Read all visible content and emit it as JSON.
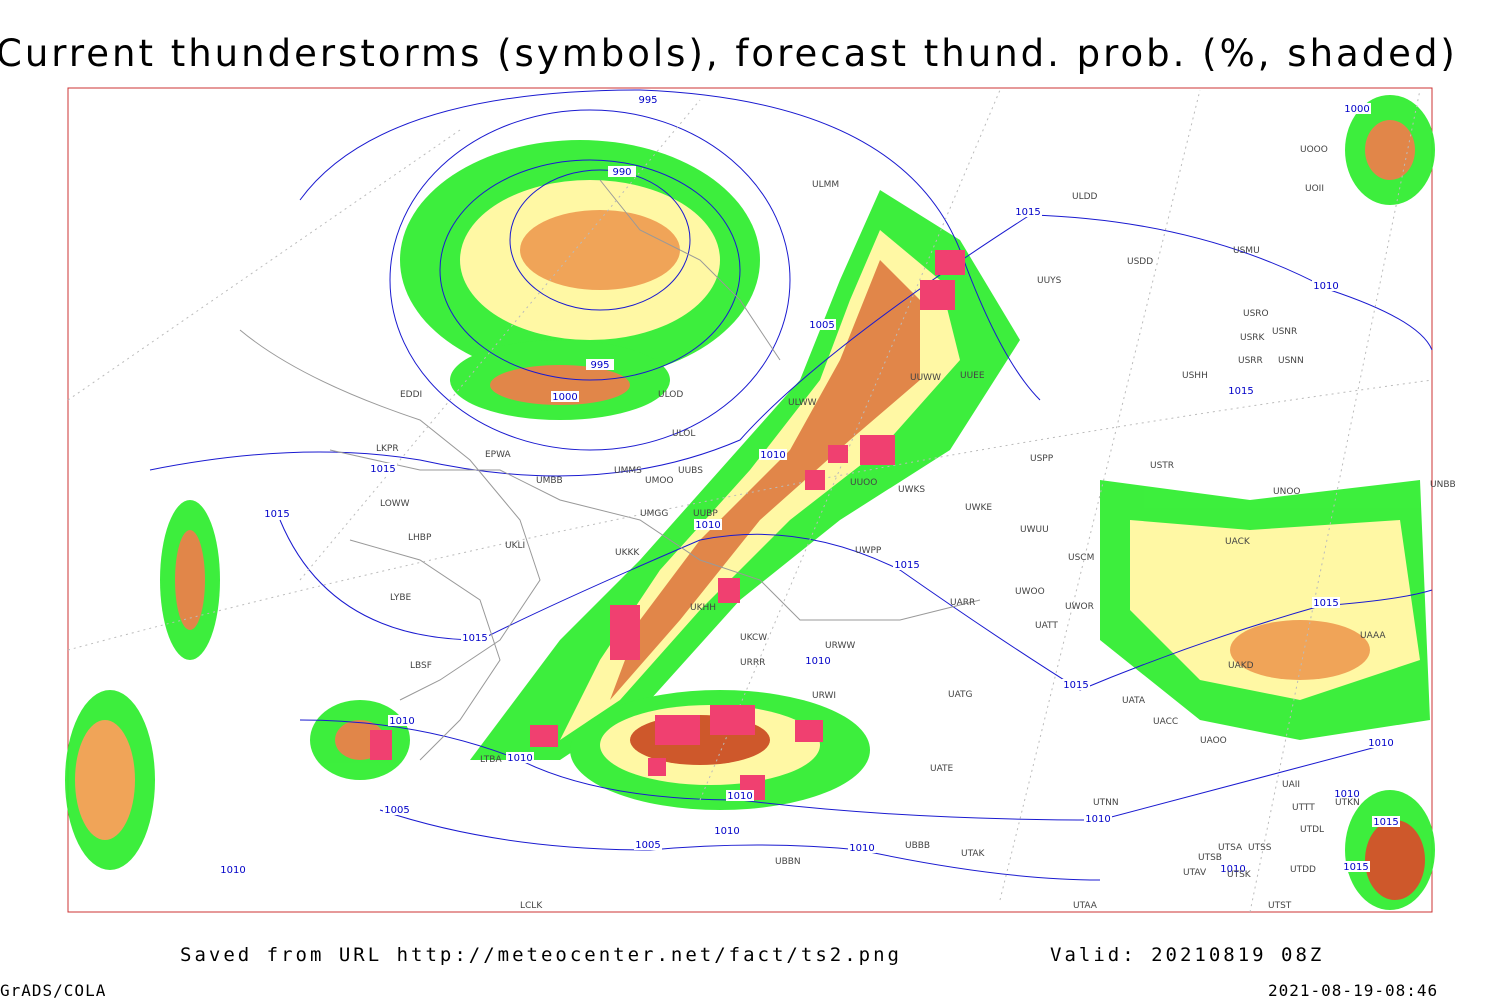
{
  "header": {
    "title": "Current thunderstorms (symbols), forecast thund. prob. (%, shaded)"
  },
  "footer": {
    "source": "Saved from URL http://meteocenter.net/fact/ts2.png",
    "valid": "Valid: 20210819 08Z",
    "software": "GrADS/COLA",
    "timestamp": "2021-08-19-08:46"
  },
  "isobar_labels": [
    995,
    990,
    995,
    1000,
    1005,
    1010,
    1010,
    1015,
    1015,
    1015,
    1010,
    1000,
    1015,
    1015,
    1015,
    1010,
    1015,
    1010,
    1010,
    1005,
    1010,
    1010,
    1005,
    1010,
    1010,
    1015,
    1010,
    1010,
    1015,
    1015,
    1010,
    1010
  ],
  "stations": [
    "ULMM",
    "ULDD",
    "USDD",
    "UUYS",
    "USMU",
    "UOOO",
    "UOII",
    "USRO",
    "USRK",
    "USNR",
    "USNN",
    "USRR",
    "USHH",
    "EDDI",
    "ULOD",
    "ULOL",
    "ULWW",
    "UUWW",
    "UUEE",
    "LKPR",
    "EPWA",
    "UMMS",
    "UMOO",
    "UUBS",
    "UMBB",
    "UUOO",
    "UWKS",
    "UWKE",
    "UWUU",
    "USPP",
    "USTR",
    "UNOO",
    "UNBB",
    "USCM",
    "UACK",
    "LOWW",
    "UMGG",
    "UUBP",
    "LHBP",
    "UKLI",
    "UKKK",
    "UWPP",
    "UWOO",
    "UWOR",
    "UATT",
    "UARR",
    "UKHH",
    "LYBE",
    "UKCW",
    "URWW",
    "URRR",
    "LBSF",
    "URWI",
    "UATG",
    "UATA",
    "UACC",
    "UAOO",
    "UATE",
    "LTBA",
    "UTNN",
    "UAII",
    "UTTT",
    "UTKN",
    "UTDL",
    "UTSA",
    "UTSS",
    "UTSB",
    "UTAV",
    "UTSK",
    "UTDD",
    "UTAK",
    "UBBB",
    "UBBN",
    "UTAA",
    "UTST",
    "LCLK",
    "UAAA",
    "UAKD"
  ]
}
